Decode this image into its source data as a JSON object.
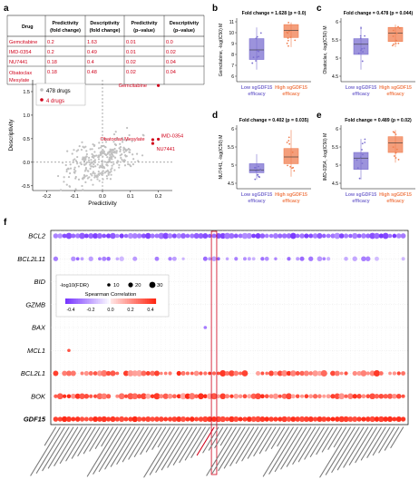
{
  "panel_letters": {
    "a": "a",
    "b": "b",
    "c": "c",
    "d": "d",
    "e": "e",
    "f": "f"
  },
  "table": {
    "headers": [
      [
        "Drug"
      ],
      [
        "Predictivity",
        "(fold change)"
      ],
      [
        "Descriptivity",
        "(fold change)"
      ],
      [
        "Predictivity",
        "(p–value)"
      ],
      [
        "Descriptivity",
        "(p–value)"
      ]
    ],
    "rows": [
      [
        "Gemcitabine",
        "0.2",
        "1.63",
        "0.01",
        "0.0"
      ],
      [
        "IMD-0354",
        "0.2",
        "0.49",
        "0.01",
        "0.02"
      ],
      [
        "NU7441",
        "0.18",
        "0.4",
        "0.02",
        "0.04"
      ],
      [
        "Obatoclax Mesylate",
        "0.18",
        "0.48",
        "0.02",
        "0.04"
      ]
    ],
    "drug_color": "#d0021b"
  },
  "scatter": {
    "legend": [
      "478 drugs",
      "4 drugs"
    ],
    "xlabel": "Predictivity",
    "ylabel": "Descriptivity",
    "xticks": [
      "-0.2",
      "-0.1",
      "0.0",
      "0.1",
      "0.2"
    ],
    "yticks": [
      "-0.5",
      "0.0",
      "0.5",
      "1.0",
      "1.5"
    ],
    "annotations": [
      "Gemcitabine",
      "Obatoclax Mesylate",
      "IMD-0354",
      "NU7441"
    ],
    "grey_color": "#c0c0c0",
    "red_color": "#d0021b"
  },
  "boxplots": [
    {
      "letter": "b",
      "title": "Fold change = 1.628 (p = 0.0)",
      "ylabel": "Gemcitabine, -log(IC50) M",
      "yticks": [
        "6",
        "7",
        "8",
        "9",
        "10",
        "11"
      ],
      "low_label": [
        "Low sgGDF15",
        "efficacy"
      ],
      "high_label": [
        "High sgGDF15",
        "efficacy"
      ]
    },
    {
      "letter": "c",
      "title": "Fold change = 0.478 (p = 0.044)",
      "ylabel": "Obatoclax, -log(IC50) M",
      "yticks": [
        "4.5",
        "5",
        "5.5",
        "6"
      ],
      "low_label": [
        "Low sgGDF15",
        "efficacy"
      ],
      "high_label": [
        "High sgGDF15",
        "efficacy"
      ]
    },
    {
      "letter": "d",
      "title": "Fold change = 0.402 (p = 0.035)",
      "ylabel": "NU7441, -log(IC50) M",
      "yticks": [
        "4.5",
        "5",
        "5.5",
        "6"
      ],
      "low_label": [
        "Low sgGDF15",
        "efficacy"
      ],
      "high_label": [
        "High sgGDF15",
        "efficacy"
      ]
    },
    {
      "letter": "e",
      "title": "Fold change = 0.489 (p = 0.02)",
      "ylabel": "IMD-0354, -log(IC50) M",
      "yticks": [
        "4.5",
        "5",
        "5.5",
        "6"
      ],
      "low_label": [
        "Low sgGDF15",
        "efficacy"
      ],
      "high_label": [
        "High sgGDF15",
        "efficacy"
      ]
    }
  ],
  "low_color": "#7b6fd0",
  "high_color": "#f07e4f",
  "bubble": {
    "rows": [
      "BCL2",
      "BCL2L11",
      "BID",
      "GZMB",
      "BAX",
      "MCL1",
      "BCL2L1",
      "BOK",
      "GDF15"
    ],
    "legend_title": "-log10(FDR)",
    "size_labels": [
      "10",
      "20",
      "30"
    ],
    "color_title": "Spearman Correlation",
    "color_ticks": [
      "-0.4",
      "-0.2",
      "0.0",
      "0.2",
      "0.4"
    ]
  },
  "chart_data": {
    "type": "scatter",
    "title": "",
    "xlabel": "Predictivity",
    "ylabel": "Descriptivity",
    "xlim": [
      -0.25,
      0.25
    ],
    "ylim": [
      -0.6,
      1.75
    ],
    "series": [
      {
        "name": "478 drugs",
        "x": [
          -0.21,
          -0.12,
          -0.1,
          -0.08,
          -0.06,
          -0.05,
          -0.04,
          -0.03,
          -0.02,
          -0.01,
          0.0,
          0.01,
          0.02,
          0.03,
          0.04,
          0.05,
          0.06,
          0.07,
          0.08,
          0.1,
          0.12,
          0.15
        ],
        "y": [
          -0.45,
          -0.1,
          0.15,
          0.05,
          0.2,
          0.35,
          -0.05,
          0.1,
          0.25,
          0.3,
          0.4,
          0.15,
          0.2,
          0.35,
          0.1,
          0.25,
          0.3,
          0.05,
          0.45,
          0.2,
          0.1,
          0.2
        ]
      },
      {
        "name": "4 drugs",
        "x": [
          0.2,
          0.2,
          0.18,
          0.18
        ],
        "y": [
          1.63,
          0.49,
          0.4,
          0.48
        ]
      }
    ]
  }
}
